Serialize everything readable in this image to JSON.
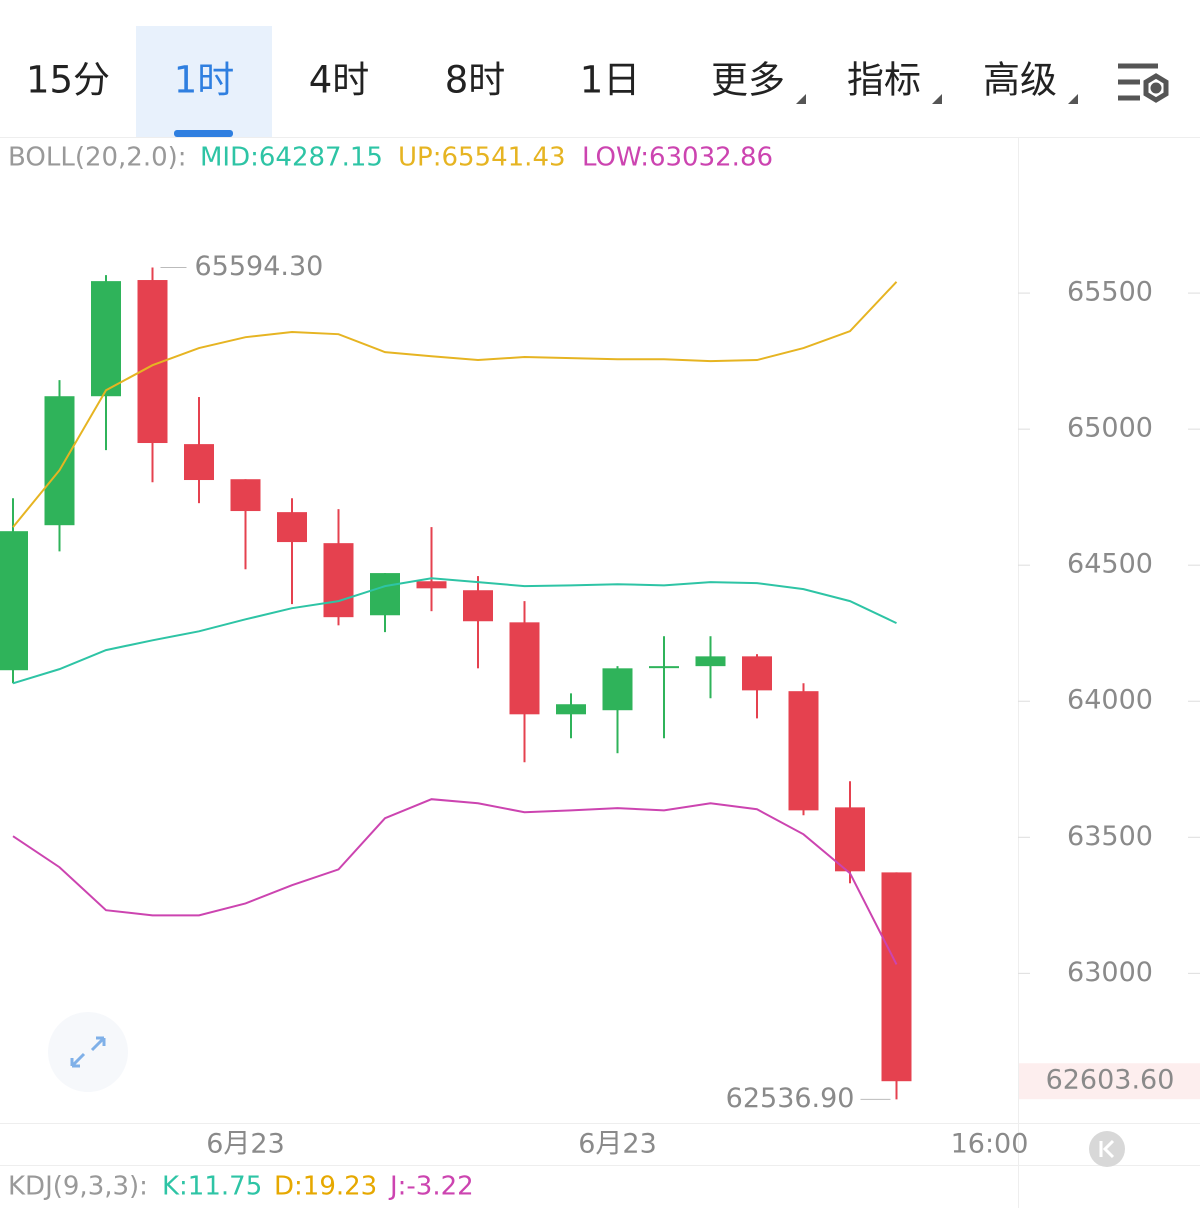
{
  "toolbar": {
    "tabs": [
      "15分",
      "1时",
      "4时",
      "8时",
      "1日",
      "更多",
      "指标",
      "高级"
    ],
    "active": 1
  },
  "chart_data": {
    "type": "candlestick",
    "categories": [
      null,
      null,
      null,
      null,
      null,
      "6月23",
      null,
      null,
      null,
      null,
      null,
      null,
      null,
      "6月23",
      null,
      null,
      null,
      null,
      null,
      null,
      null,
      "16:00"
    ],
    "open": [
      64114,
      64647,
      65121,
      65548,
      64945,
      64816,
      64695,
      64581,
      64316,
      64441,
      64408,
      64290,
      63952,
      63967,
      64125,
      64129,
      64165,
      64037,
      63610,
      63371,
      null,
      null
    ],
    "high": [
      64746,
      65180,
      65566,
      65594.3,
      65118,
      64816,
      64746,
      64706,
      64471,
      64640,
      64460,
      64368,
      64029,
      64129,
      64239,
      64239,
      64173,
      64066,
      63706,
      63371,
      null,
      null
    ],
    "low": [
      64066,
      64551,
      64923,
      64805,
      64728,
      64485,
      64357,
      64279,
      64254,
      64331,
      64121,
      63776,
      63864,
      63809,
      63864,
      64011,
      63937,
      63581,
      63331,
      62536.9,
      null,
      null
    ],
    "close": [
      64625,
      65121,
      65544,
      64949,
      64813,
      64699,
      64585,
      64309,
      64471,
      64415,
      64294,
      63952,
      63989,
      64121,
      64129,
      64165,
      64040,
      63599,
      63375,
      62603.6,
      null,
      null
    ],
    "up_color": "#2fb35a",
    "down_color": "#e5414f",
    "indicator_title": "BOLL(20,2.0):",
    "overlays": [
      {
        "name": "MID",
        "legend_label": "MID:64287.15",
        "color": "#2ec4a5",
        "values": [
          64066,
          64118,
          64188,
          64224,
          64257,
          64301,
          64342,
          64368,
          64423,
          64452,
          64438,
          64423,
          64426,
          64430,
          64426,
          64438,
          64434,
          64412,
          64368,
          64287.15,
          null,
          null
        ]
      },
      {
        "name": "UP",
        "legend_label": "UP:65541.43",
        "color": "#e6b422",
        "values": [
          64640,
          64849,
          65143,
          65235,
          65298,
          65338,
          65357,
          65349,
          65283,
          65268,
          65254,
          65265,
          65261,
          65257,
          65257,
          65250,
          65254,
          65298,
          65360,
          65541.43,
          null,
          null
        ]
      },
      {
        "name": "LOW",
        "legend_label": "LOW:63032.86",
        "color": "#cc44b0",
        "values": [
          63504,
          63390,
          63232,
          63213,
          63213,
          63257,
          63324,
          63382,
          63570,
          63640,
          63625,
          63592,
          63599,
          63607,
          63599,
          63625,
          63603,
          63511,
          63368,
          63032.86,
          null,
          null
        ]
      }
    ],
    "high_label": "65594.30",
    "low_label": "62536.90",
    "last_label": "62603.60",
    "ylim": [
      62450,
      66070
    ],
    "yticks": [
      63000,
      63500,
      64000,
      64500,
      65000,
      65500
    ]
  },
  "kdj": {
    "title": "KDJ(9,3,3):",
    "items": [
      {
        "label": "K:11.75",
        "color": "#2ec4a5"
      },
      {
        "label": "D:19.23",
        "color": "#e6a800"
      },
      {
        "label": "J:-3.22",
        "color": "#cc44b0"
      }
    ]
  }
}
